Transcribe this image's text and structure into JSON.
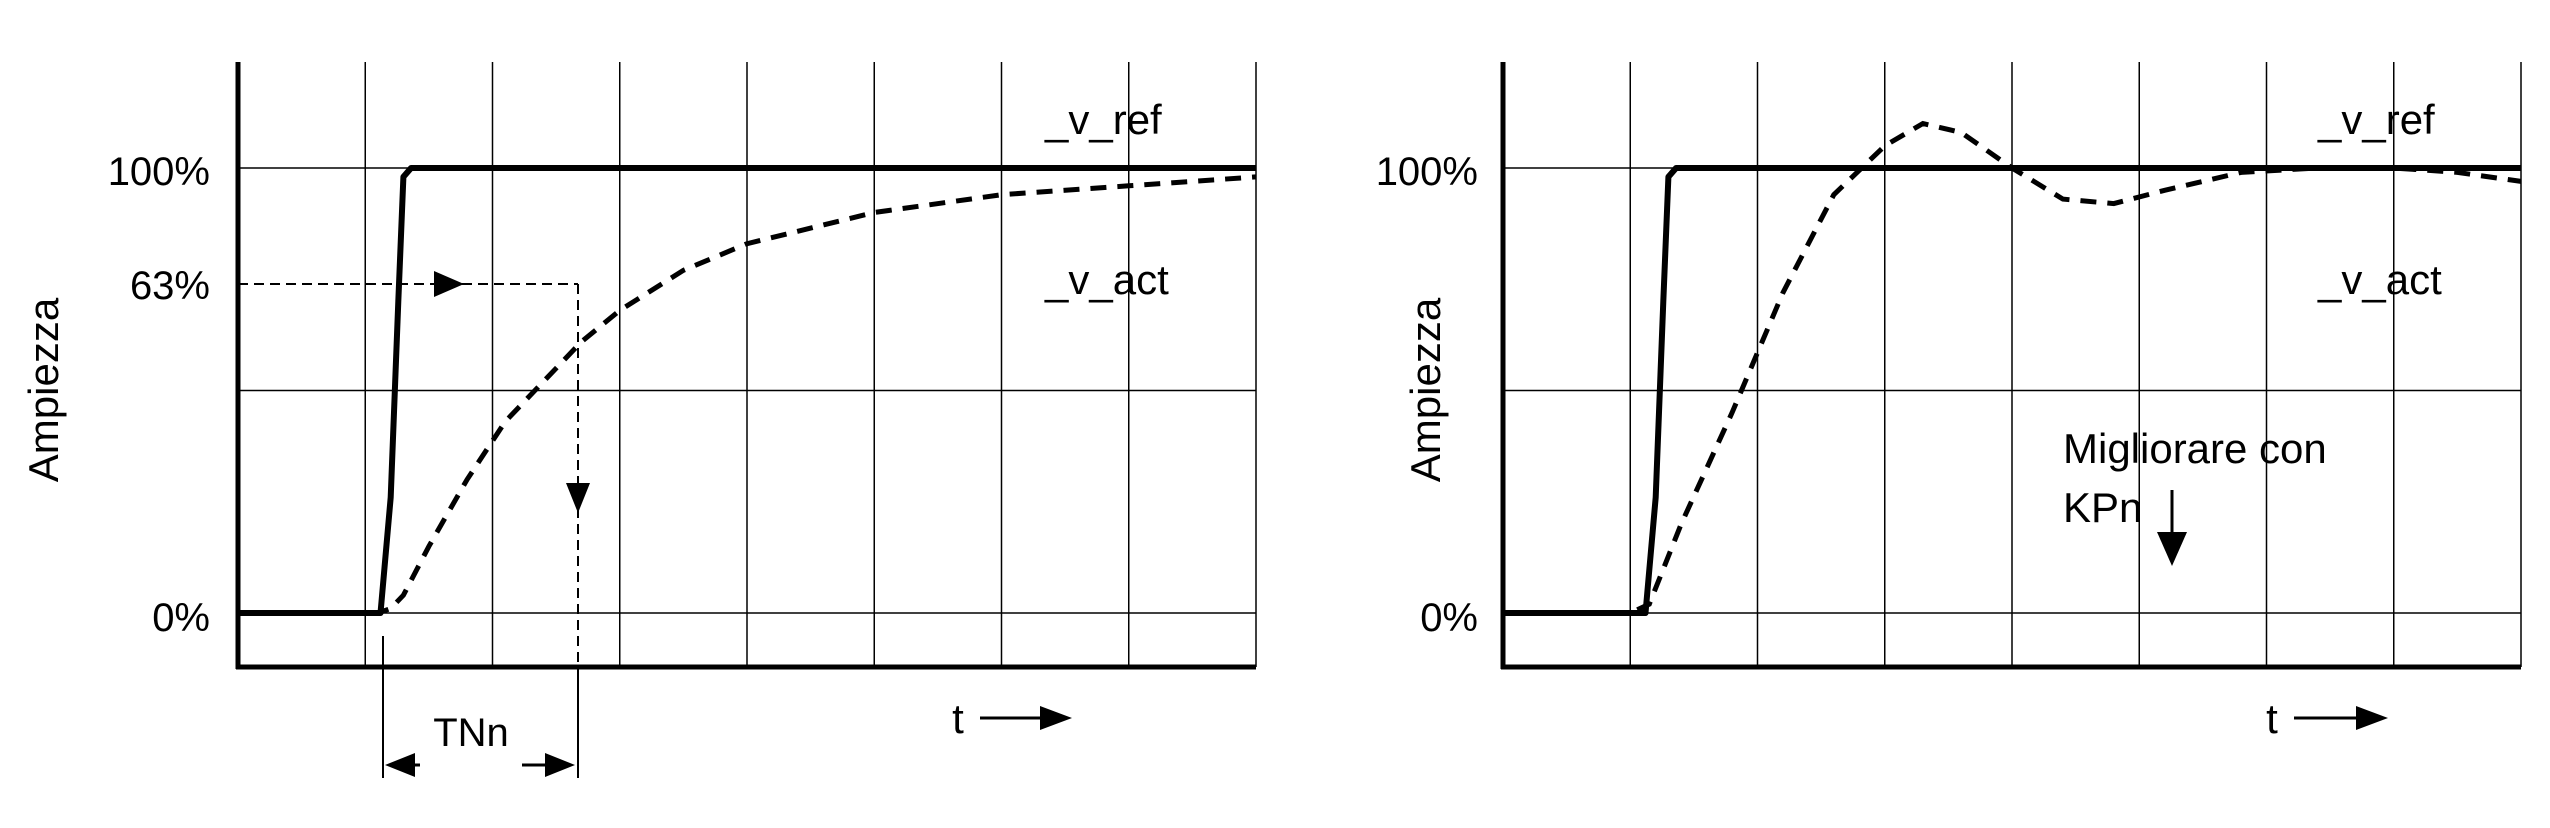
{
  "chart_data": [
    {
      "type": "line",
      "ylabel": "Ampiezza",
      "xlabel": "t",
      "ytick_labels": [
        "100%",
        "63%",
        "0%"
      ],
      "yticks": [
        100,
        63,
        0
      ],
      "ylim": [
        -12,
        124
      ],
      "xlim": [
        0,
        8
      ],
      "grid": true,
      "series": [
        {
          "name": "_v_ref",
          "style": "solid",
          "points": [
            [
              0,
              0
            ],
            [
              1.12,
              0
            ],
            [
              1.2,
              26
            ],
            [
              1.26,
              70
            ],
            [
              1.3,
              98
            ],
            [
              1.36,
              100
            ],
            [
              8,
              100
            ]
          ]
        },
        {
          "name": "_v_act",
          "style": "dashed",
          "points": [
            [
              0,
              0
            ],
            [
              1.1,
              0
            ],
            [
              1.2,
              1
            ],
            [
              1.3,
              4
            ],
            [
              1.5,
              15
            ],
            [
              1.8,
              30
            ],
            [
              2.1,
              43
            ],
            [
              2.5,
              55
            ],
            [
              2.7,
              61
            ],
            [
              3.0,
              68
            ],
            [
              3.5,
              77
            ],
            [
              4.0,
              83
            ],
            [
              5.0,
              90
            ],
            [
              6.0,
              94
            ],
            [
              7.0,
              96
            ],
            [
              8.0,
              98
            ]
          ]
        }
      ],
      "annotations": [
        {
          "text": "TNn",
          "marks": "time constant from step to 63%"
        }
      ],
      "colors": {
        "line": "#000000",
        "grid": "#000000",
        "background": "#ffffff"
      }
    },
    {
      "type": "line",
      "ylabel": "Ampiezza",
      "xlabel": "t",
      "ytick_labels": [
        "100%",
        "0%"
      ],
      "yticks": [
        100,
        0
      ],
      "ylim": [
        -12,
        124
      ],
      "xlim": [
        0,
        8
      ],
      "grid": true,
      "series": [
        {
          "name": "_v_ref",
          "style": "solid",
          "points": [
            [
              0,
              0
            ],
            [
              1.12,
              0
            ],
            [
              1.2,
              26
            ],
            [
              1.26,
              70
            ],
            [
              1.3,
              98
            ],
            [
              1.36,
              100
            ],
            [
              8,
              100
            ]
          ]
        },
        {
          "name": "_v_act",
          "style": "dashed",
          "points": [
            [
              0,
              0
            ],
            [
              1.0,
              0
            ],
            [
              1.15,
              2
            ],
            [
              1.4,
              20
            ],
            [
              1.8,
              45
            ],
            [
              2.2,
              72
            ],
            [
              2.6,
              94
            ],
            [
              3.0,
              105
            ],
            [
              3.3,
              110
            ],
            [
              3.6,
              108
            ],
            [
              4.0,
              100
            ],
            [
              4.4,
              93
            ],
            [
              4.8,
              92
            ],
            [
              5.2,
              95
            ],
            [
              5.8,
              99
            ],
            [
              6.4,
              100
            ],
            [
              7.0,
              100
            ],
            [
              7.5,
              99
            ],
            [
              8.0,
              97
            ]
          ]
        }
      ],
      "annotations": [
        {
          "text": "Migliorare con",
          "text2": "KPn",
          "marks": "arrow pointing down"
        }
      ],
      "colors": {
        "line": "#000000",
        "grid": "#000000",
        "background": "#ffffff"
      }
    }
  ]
}
